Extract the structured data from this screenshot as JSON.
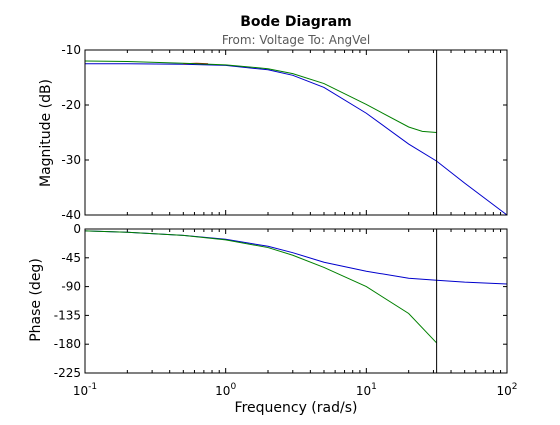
{
  "chart_data": {
    "type": "line",
    "title": "Bode Diagram",
    "subtitle": "From: Voltage  To: AngVel",
    "xlabel": "Frequency  (rad/s)",
    "xscale": "log",
    "xlim": [
      0.1,
      100
    ],
    "x_ticks": [
      0.1,
      1,
      10,
      100
    ],
    "x_tick_labels": [
      {
        "base": "10",
        "exp": "-1"
      },
      {
        "base": "10",
        "exp": "0"
      },
      {
        "base": "10",
        "exp": "1"
      },
      {
        "base": "10",
        "exp": "2"
      }
    ],
    "marker_x": 31.6,
    "panels": [
      {
        "ylabel": "Magnitude (dB)",
        "ylim": [
          -40,
          -10
        ],
        "y_ticks": [
          -10,
          -20,
          -30,
          -40
        ],
        "y_tick_labels": [
          "-10",
          "-20",
          "-30",
          "-40"
        ],
        "series": [
          {
            "color": "#0000cc",
            "points": [
              [
                0.1,
                -12.5
              ],
              [
                0.2,
                -12.5
              ],
              [
                0.5,
                -12.6
              ],
              [
                1,
                -12.8
              ],
              [
                2,
                -13.6
              ],
              [
                3,
                -14.6
              ],
              [
                5,
                -16.8
              ],
              [
                10,
                -21.5
              ],
              [
                20,
                -27.1
              ],
              [
                31.6,
                -30.2
              ],
              [
                50,
                -34.2
              ],
              [
                100,
                -40.0
              ]
            ]
          },
          {
            "color": "#cc0000",
            "points": [
              [
                0.5,
                -12.5
              ],
              [
                0.62,
                -12.4
              ],
              [
                0.75,
                -12.5
              ]
            ]
          },
          {
            "color": "#008000",
            "points": [
              [
                0.1,
                -12.0
              ],
              [
                0.2,
                -12.1
              ],
              [
                0.5,
                -12.4
              ],
              [
                1,
                -12.7
              ],
              [
                2,
                -13.4
              ],
              [
                3,
                -14.3
              ],
              [
                5,
                -16.1
              ],
              [
                10,
                -19.9
              ],
              [
                20,
                -24.0
              ],
              [
                25,
                -24.8
              ],
              [
                31.6,
                -25.0
              ]
            ]
          }
        ]
      },
      {
        "ylabel": "Phase (deg)",
        "ylim": [
          -225,
          0
        ],
        "y_ticks": [
          0,
          -45,
          -90,
          -135,
          -180,
          -225
        ],
        "y_tick_labels": [
          "0",
          "-45",
          "-90",
          "-135",
          "-180",
          "-225"
        ],
        "series": [
          {
            "color": "#0000cc",
            "points": [
              [
                0.1,
                -3
              ],
              [
                0.2,
                -5
              ],
              [
                0.5,
                -10
              ],
              [
                1,
                -16
              ],
              [
                2,
                -27
              ],
              [
                3,
                -37
              ],
              [
                5,
                -52
              ],
              [
                10,
                -66
              ],
              [
                20,
                -77
              ],
              [
                31.6,
                -80
              ],
              [
                50,
                -83
              ],
              [
                100,
                -86
              ]
            ]
          },
          {
            "color": "#008000",
            "points": [
              [
                0.1,
                -3
              ],
              [
                0.2,
                -5
              ],
              [
                0.5,
                -10
              ],
              [
                1,
                -17
              ],
              [
                2,
                -29
              ],
              [
                3,
                -41
              ],
              [
                5,
                -60
              ],
              [
                10,
                -90
              ],
              [
                20,
                -132
              ],
              [
                31.6,
                -178
              ]
            ]
          }
        ]
      }
    ]
  }
}
